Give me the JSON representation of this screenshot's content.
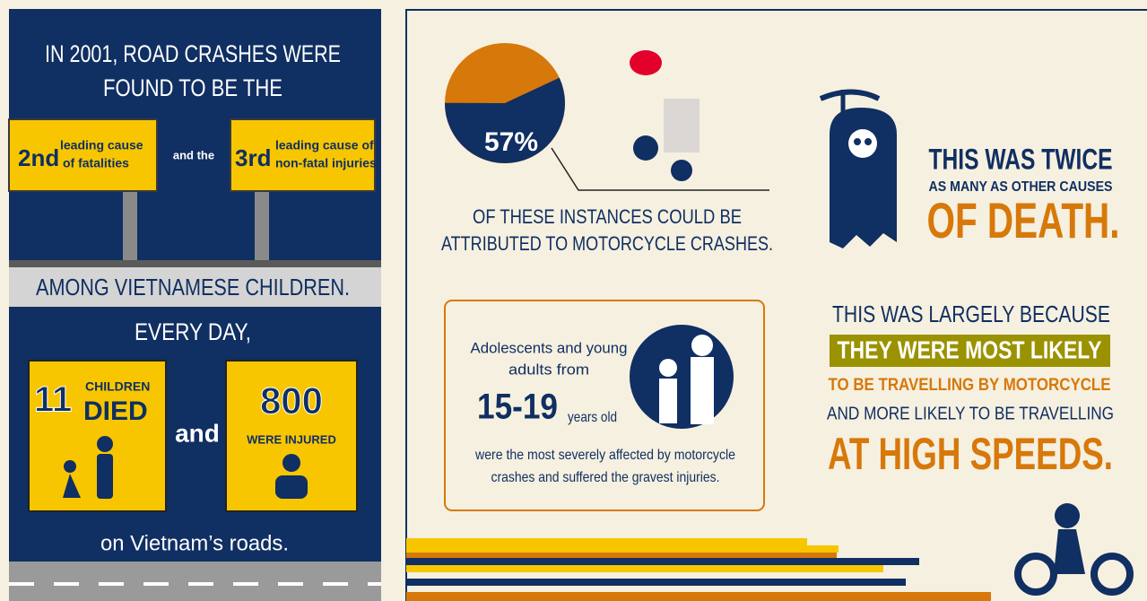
{
  "left": {
    "intro": [
      "IN 2001, ROAD CRASHES WERE",
      "FOUND TO BE THE"
    ],
    "sign1": {
      "rank": "2nd",
      "text": [
        "leading cause",
        "of fatalities"
      ]
    },
    "joiner": "and the",
    "sign2": {
      "rank": "3rd",
      "text": [
        "leading cause of",
        "non-fatal injuries"
      ]
    },
    "among": "AMONG VIETNAMESE CHILDREN.",
    "every_day": "EVERY DAY,",
    "box1": {
      "number": "11",
      "text": [
        "CHILDREN",
        "DIED"
      ]
    },
    "and": "and",
    "box2": {
      "number": "800",
      "text": "WERE INJURED"
    },
    "roads": "on Vietnam’s roads."
  },
  "right": {
    "pie": {
      "value": 57,
      "label": "57%"
    },
    "pie_caption": [
      "OF THESE INSTANCES COULD BE",
      "ATTRIBUTED TO MOTORCYCLE CRASHES."
    ],
    "twice": [
      "THIS WAS TWICE",
      "AS MANY AS OTHER CAUSES",
      "OF DEATH."
    ],
    "box": {
      "lines": [
        "Adolescents and young",
        "adults from"
      ],
      "age": "15-19",
      "age_unit": "years old",
      "footer": [
        "were the most severely affected by motorcycle",
        "crashes and suffered the gravest injuries."
      ]
    },
    "because": [
      "THIS WAS LARGELY BECAUSE",
      "THEY WERE MOST LIKELY",
      "TO BE TRAVELLING BY MOTORCYCLE",
      "AND MORE LIKELY TO BE TRAVELLING",
      "AT HIGH SPEEDS."
    ]
  }
}
